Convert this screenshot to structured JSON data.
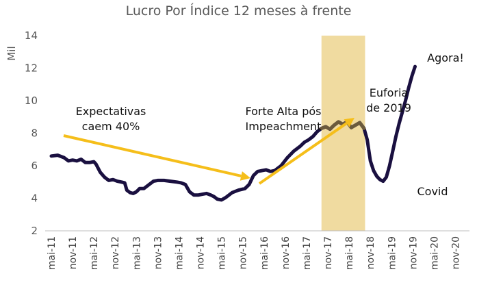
{
  "chart_data": {
    "type": "line",
    "title": "Lucro Por Índice 12 meses à frente",
    "ylabel": "Mil",
    "xlabel": "",
    "ylim": [
      2,
      14
    ],
    "yticks": [
      "2",
      "4",
      "6",
      "8",
      "10",
      "12",
      "14"
    ],
    "grid": false,
    "x_tick_labels": [
      "mai-11",
      "nov-11",
      "mai-12",
      "nov-12",
      "mai-13",
      "nov-13",
      "mai-14",
      "nov-14",
      "mai-15",
      "nov-15",
      "mai-16",
      "nov-16",
      "mai-17",
      "nov-17",
      "mai-18",
      "nov-18",
      "mai-19",
      "nov-19",
      "mai-20",
      "nov-20"
    ],
    "series": [
      {
        "name": "Lucro por Índice",
        "color": "#1a1040",
        "points": [
          [
            0,
            6.6
          ],
          [
            0.3,
            6.65
          ],
          [
            0.6,
            6.5
          ],
          [
            0.8,
            6.3
          ],
          [
            1.0,
            6.35
          ],
          [
            1.2,
            6.3
          ],
          [
            1.4,
            6.4
          ],
          [
            1.6,
            6.2
          ],
          [
            1.8,
            6.2
          ],
          [
            2.0,
            6.25
          ],
          [
            2.1,
            6.1
          ],
          [
            2.3,
            5.6
          ],
          [
            2.5,
            5.3
          ],
          [
            2.7,
            5.1
          ],
          [
            2.9,
            5.15
          ],
          [
            3.1,
            5.05
          ],
          [
            3.3,
            5.0
          ],
          [
            3.45,
            4.95
          ],
          [
            3.55,
            4.5
          ],
          [
            3.7,
            4.35
          ],
          [
            3.85,
            4.3
          ],
          [
            4.0,
            4.4
          ],
          [
            4.15,
            4.6
          ],
          [
            4.35,
            4.6
          ],
          [
            4.6,
            4.85
          ],
          [
            4.8,
            5.05
          ],
          [
            5.0,
            5.1
          ],
          [
            5.3,
            5.1
          ],
          [
            5.6,
            5.05
          ],
          [
            5.9,
            5.0
          ],
          [
            6.1,
            4.95
          ],
          [
            6.3,
            4.85
          ],
          [
            6.5,
            4.4
          ],
          [
            6.7,
            4.2
          ],
          [
            6.9,
            4.2
          ],
          [
            7.1,
            4.25
          ],
          [
            7.3,
            4.3
          ],
          [
            7.5,
            4.2
          ],
          [
            7.65,
            4.1
          ],
          [
            7.8,
            3.95
          ],
          [
            8.0,
            3.9
          ],
          [
            8.2,
            4.05
          ],
          [
            8.5,
            4.35
          ],
          [
            8.8,
            4.5
          ],
          [
            9.1,
            4.6
          ],
          [
            9.3,
            4.85
          ],
          [
            9.5,
            5.4
          ],
          [
            9.7,
            5.65
          ],
          [
            9.9,
            5.7
          ],
          [
            10.1,
            5.75
          ],
          [
            10.3,
            5.65
          ],
          [
            10.5,
            5.7
          ],
          [
            10.8,
            6.0
          ],
          [
            11.1,
            6.5
          ],
          [
            11.4,
            6.9
          ],
          [
            11.7,
            7.2
          ],
          [
            11.9,
            7.45
          ],
          [
            12.1,
            7.6
          ],
          [
            12.3,
            7.8
          ],
          [
            12.5,
            8.1
          ],
          [
            12.7,
            8.3
          ],
          [
            12.9,
            8.4
          ],
          [
            13.1,
            8.25
          ],
          [
            13.3,
            8.5
          ],
          [
            13.5,
            8.7
          ],
          [
            13.7,
            8.55
          ],
          [
            13.9,
            8.7
          ],
          [
            14.1,
            8.35
          ],
          [
            14.3,
            8.5
          ],
          [
            14.5,
            8.65
          ],
          [
            14.7,
            8.3
          ],
          [
            14.85,
            7.6
          ],
          [
            15.0,
            6.3
          ],
          [
            15.15,
            5.7
          ],
          [
            15.3,
            5.35
          ],
          [
            15.45,
            5.15
          ],
          [
            15.6,
            5.05
          ],
          [
            15.75,
            5.3
          ],
          [
            15.9,
            6.0
          ],
          [
            16.05,
            6.9
          ],
          [
            16.2,
            7.8
          ],
          [
            16.35,
            8.6
          ],
          [
            16.5,
            9.3
          ],
          [
            16.65,
            10.0
          ],
          [
            16.8,
            10.8
          ],
          [
            16.95,
            11.5
          ],
          [
            17.1,
            12.1
          ]
        ]
      }
    ],
    "shaded_region": {
      "label": "Euforia de 2019",
      "x_start": 12.7,
      "x_end": 14.75,
      "color": "#f0dba0"
    },
    "annotations": [
      {
        "id": "a1",
        "line1": "Expectativas",
        "line2": "caem 40%"
      },
      {
        "id": "a2",
        "line1": "Forte Alta pós",
        "line2": "Impeachment"
      },
      {
        "id": "a3",
        "line1": "Euforia",
        "line2": "de 2019"
      },
      {
        "id": "a4",
        "line1": "Agora!"
      },
      {
        "id": "a5",
        "line1": "Covid"
      }
    ],
    "arrow_color": "#f5be1a"
  }
}
